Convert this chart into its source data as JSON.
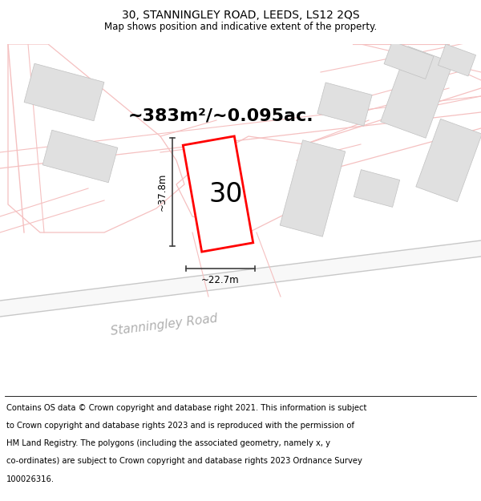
{
  "title_line1": "30, STANNINGLEY ROAD, LEEDS, LS12 2QS",
  "title_line2": "Map shows position and indicative extent of the property.",
  "footer_lines": [
    "Contains OS data © Crown copyright and database right 2021. This information is subject",
    "to Crown copyright and database rights 2023 and is reproduced with the permission of",
    "HM Land Registry. The polygons (including the associated geometry, namely x, y",
    "co-ordinates) are subject to Crown copyright and database rights 2023 Ordnance Survey",
    "100026316."
  ],
  "area_label": "~383m²/~0.095ac.",
  "width_label": "~22.7m",
  "height_label": "~37.8m",
  "number_label": "30",
  "road_label": "Stanningley Road",
  "background_color": "#ffffff",
  "plot_color_red": "#ff0000",
  "road_line_color": "#f5c0c0",
  "road_line_color2": "#e8b0b0",
  "grey_line_color": "#cccccc",
  "building_fill": "#e0e0e0",
  "building_edge": "#c0c0c0",
  "dim_line_color": "#404040",
  "road_label_color": "#b0b0b0",
  "title_fontsize": 10,
  "subtitle_fontsize": 8.5,
  "footer_fontsize": 7.2,
  "area_fontsize": 16,
  "number_fontsize": 24,
  "dim_fontsize": 8.5,
  "road_label_fontsize": 11
}
